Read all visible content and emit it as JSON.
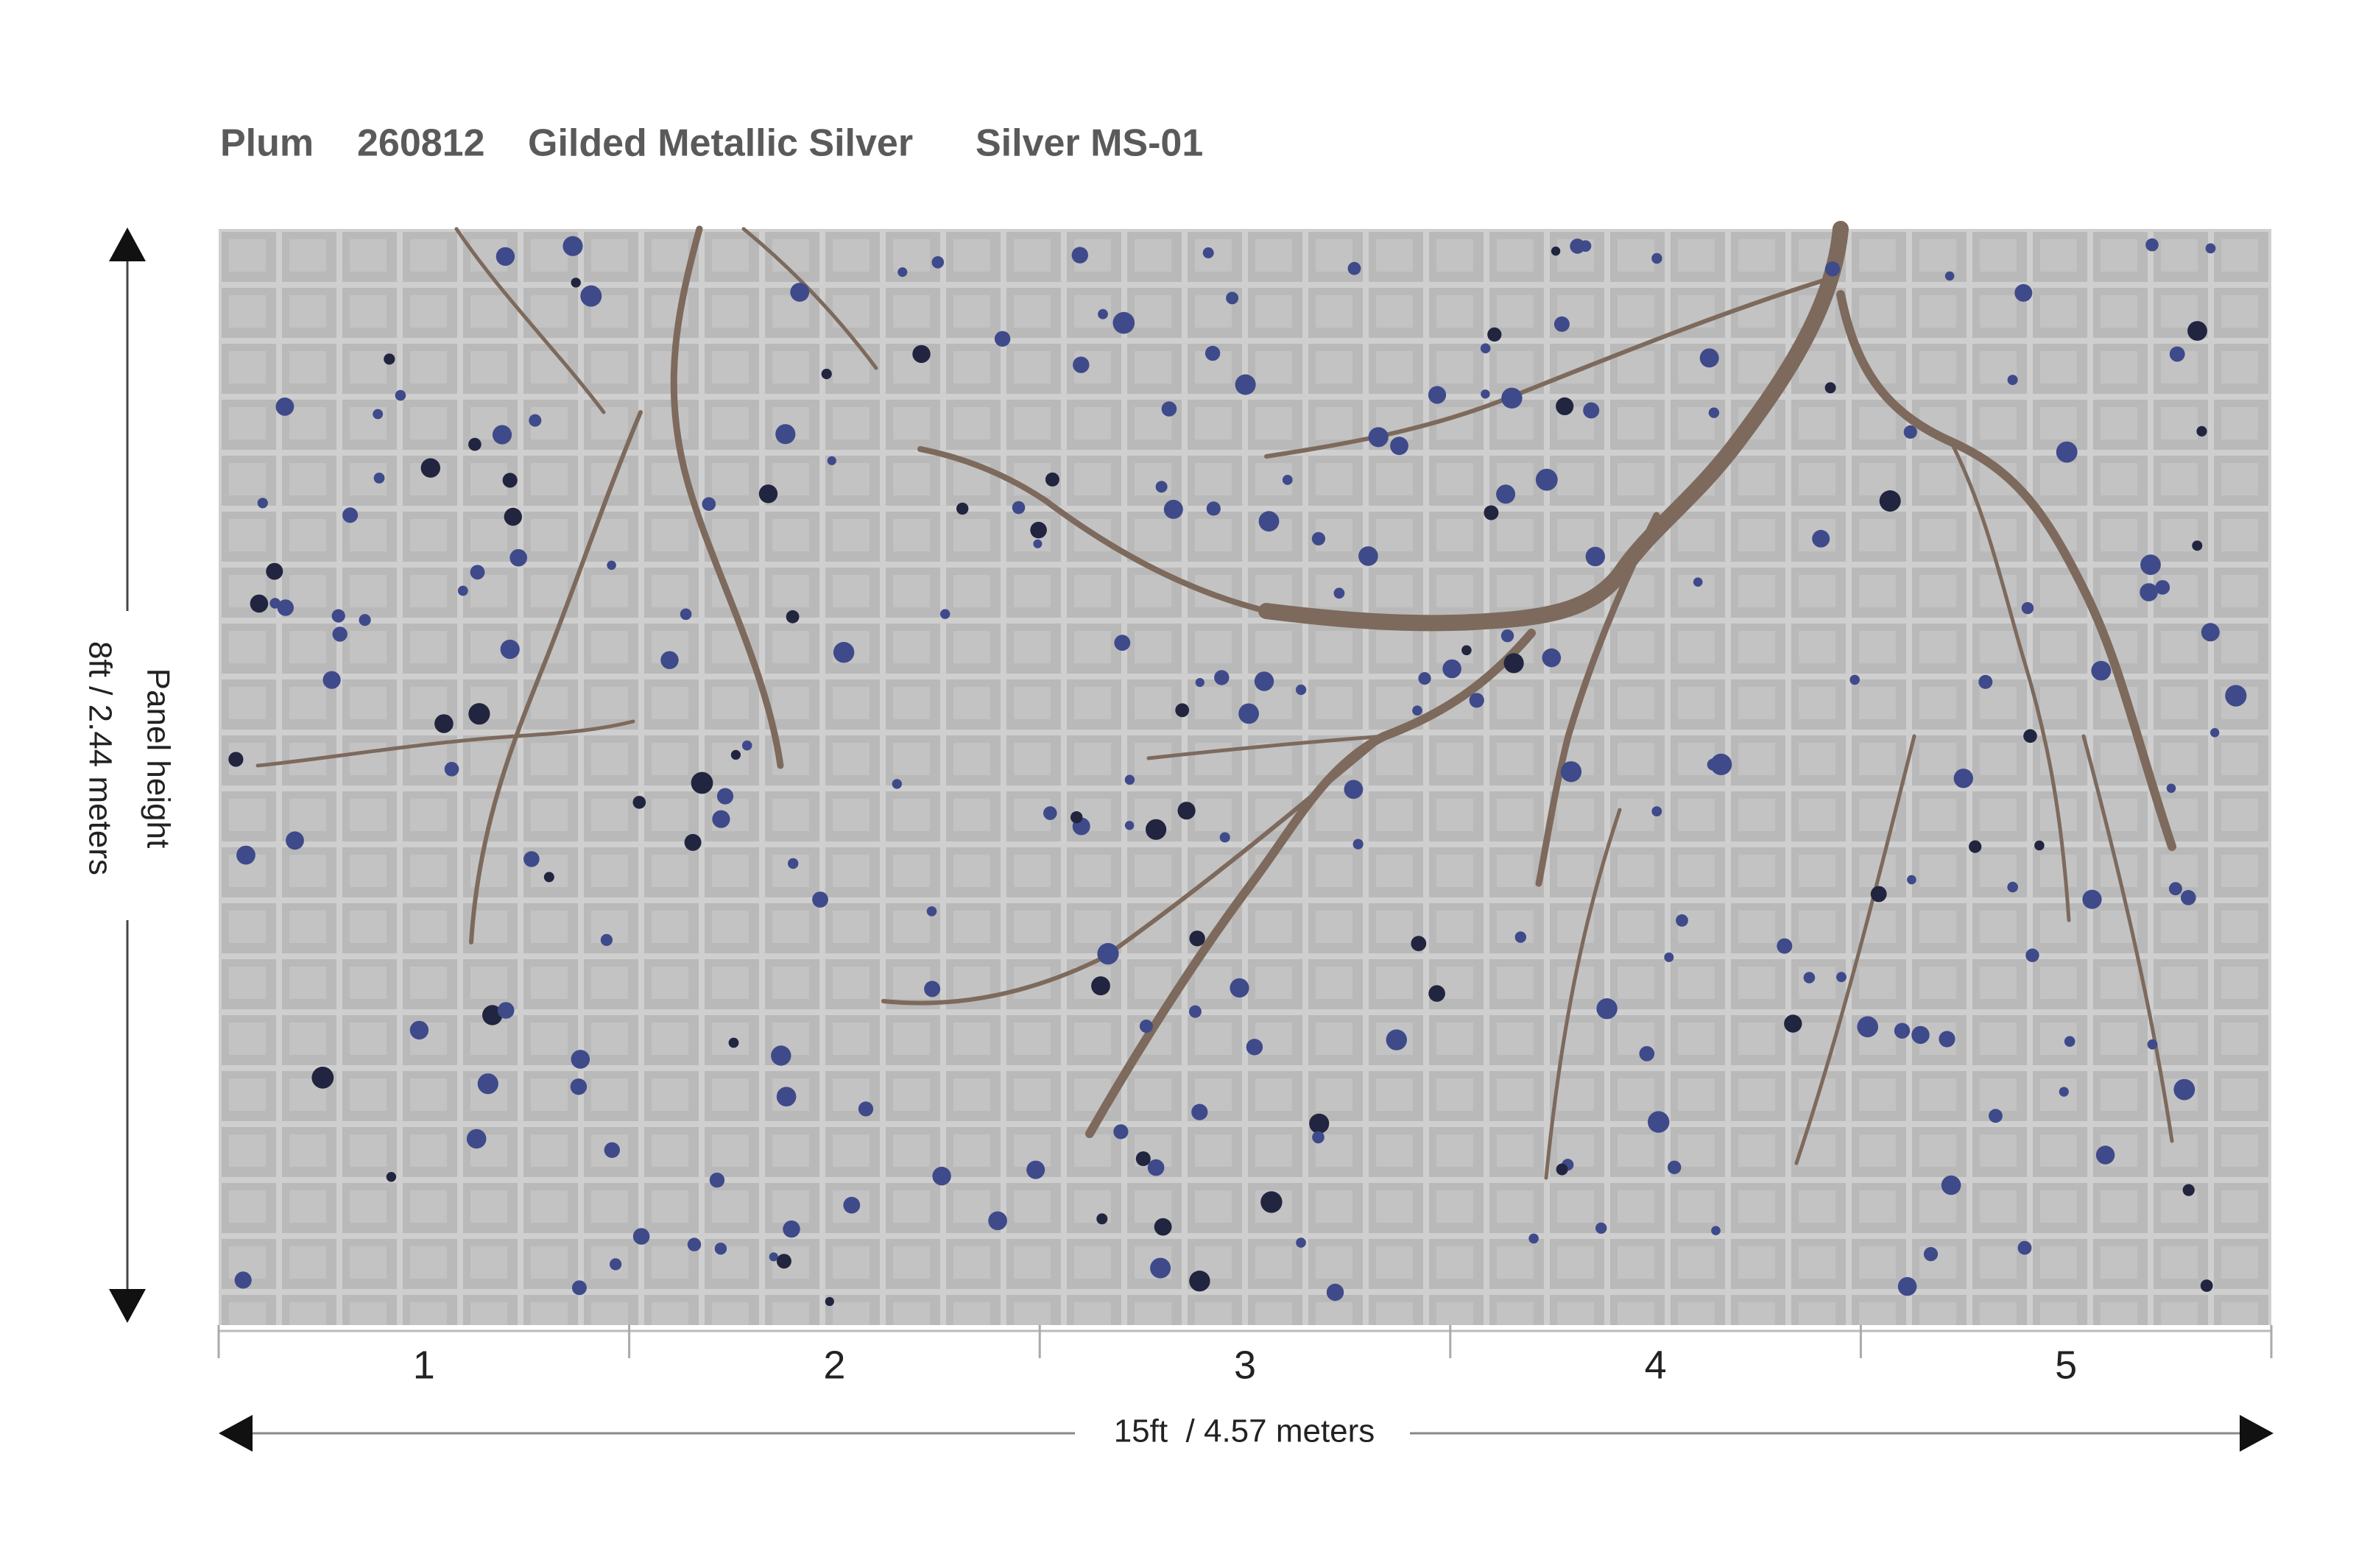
{
  "header": {
    "pattern": "Plum",
    "code": "260812",
    "finish": "Gilded Metallic Silver",
    "colorway": "Silver MS-01"
  },
  "height_label": {
    "title": "Panel height",
    "size": "8ft / 2.44 meters"
  },
  "panels": [
    "1",
    "2",
    "3",
    "4",
    "5"
  ],
  "width_label": "15ft  / 4.57 meters"
}
